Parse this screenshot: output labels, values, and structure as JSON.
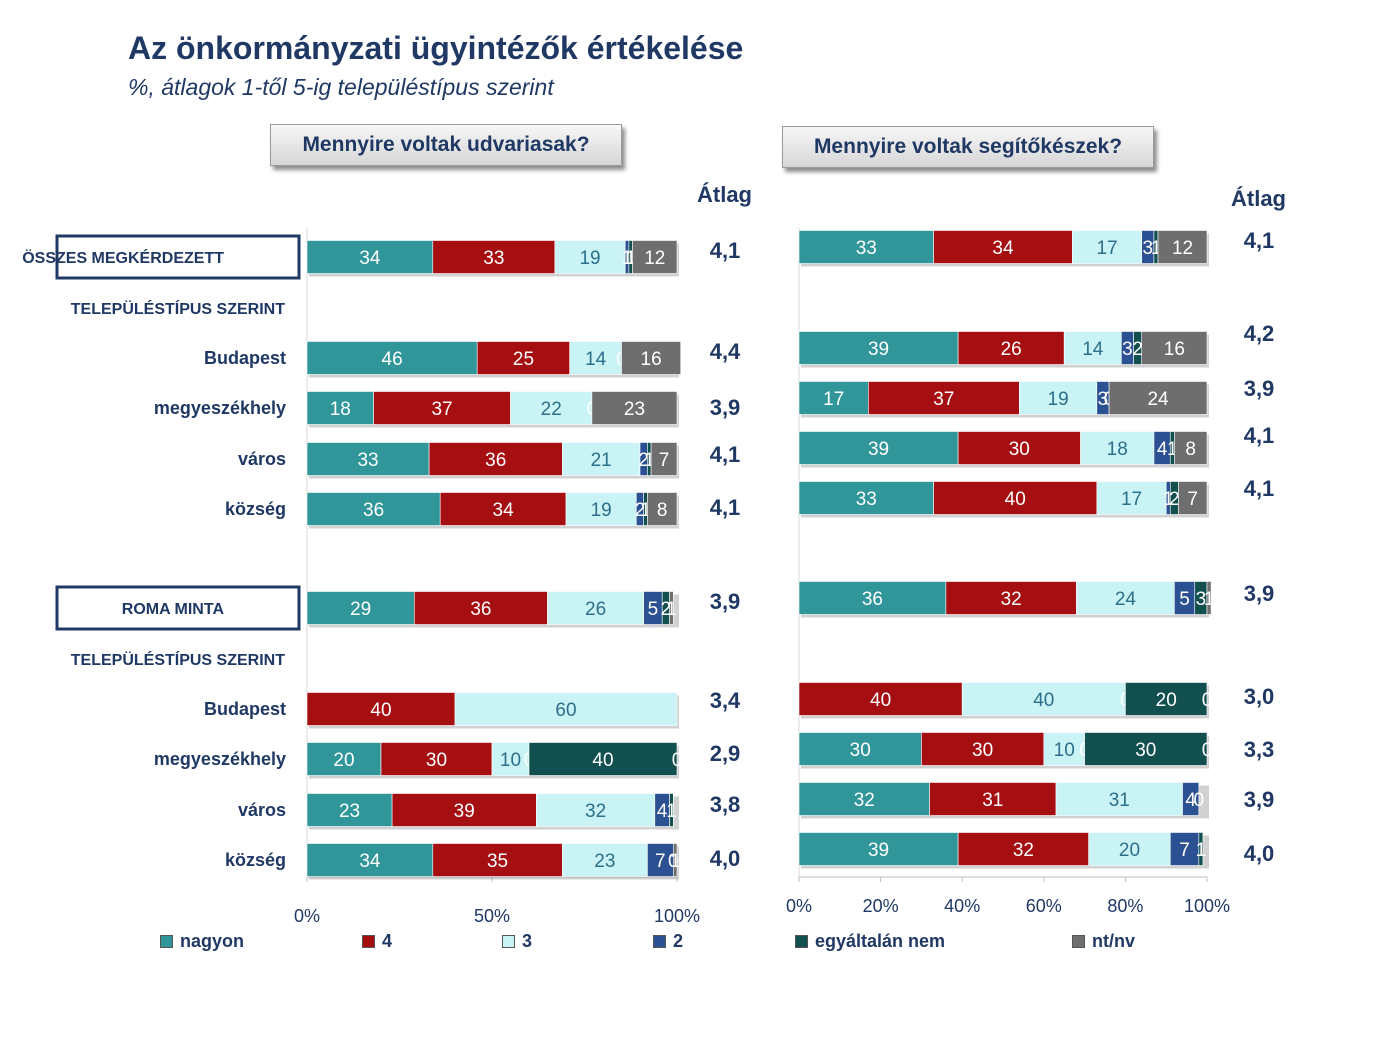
{
  "title": "Az önkormányzati ügyintézők értékelése",
  "subtitle": "%, átlagok 1-től 5-ig településtípus szerint",
  "chart_data": {
    "type": "bar",
    "orientation": "horizontal",
    "stacked": "percent",
    "series_names": [
      "nagyon",
      "4",
      "3",
      "2",
      "egyáltalán nem",
      "nt/nv"
    ],
    "colors": [
      "#31969a",
      "#a50f12",
      "#c9f3f5",
      "#2c5192",
      "#124f4f",
      "#6e6e6e"
    ],
    "mean_header": "Átlag",
    "row_labels": [
      {
        "text": "ÖSSZES MEGKÉRDEZETT",
        "boxed": true
      },
      {
        "text": "TELEPÜLÉSTÍPUS SZERINT",
        "boxed": false,
        "header": true
      },
      {
        "text": "Budapest",
        "boxed": false
      },
      {
        "text": "megyeszékhely",
        "boxed": false
      },
      {
        "text": "város",
        "boxed": false
      },
      {
        "text": "község",
        "boxed": false
      },
      {
        "text": "ROMA MINTA",
        "boxed": true
      },
      {
        "text": "TELEPÜLÉSTÍPUS SZERINT",
        "boxed": false,
        "header": true
      },
      {
        "text": "Budapest",
        "boxed": false
      },
      {
        "text": "megyeszékhely",
        "boxed": false
      },
      {
        "text": "város",
        "boxed": false
      },
      {
        "text": "község",
        "boxed": false
      }
    ],
    "panels": [
      {
        "question": "Mennyire voltak udvariasak?",
        "x_ticks": [
          "0%",
          "50%",
          "100%"
        ],
        "xlim": [
          0,
          100
        ],
        "rows": [
          {
            "values": [
              34,
              33,
              19,
              1,
              1,
              12
            ],
            "labels": [
              "34",
              "33",
              "19",
              "1",
              "1",
              "12"
            ],
            "mean": "4,1"
          },
          {
            "values": [
              46,
              25,
              14,
              0,
              0,
              16
            ],
            "labels": [
              "46",
              "25",
              "14",
              "0",
              "",
              "16"
            ],
            "mean": "4,4"
          },
          {
            "values": [
              18,
              37,
              22,
              0,
              0,
              23
            ],
            "labels": [
              "18",
              "37",
              "22",
              "0",
              "",
              "23"
            ],
            "mean": "3,9"
          },
          {
            "values": [
              33,
              36,
              21,
              2,
              1,
              7
            ],
            "labels": [
              "33",
              "36",
              "21",
              "2",
              "1",
              "7"
            ],
            "mean": "4,1"
          },
          {
            "values": [
              36,
              34,
              19,
              2,
              1,
              8
            ],
            "labels": [
              "36",
              "34",
              "19",
              "2",
              "1",
              "8"
            ],
            "mean": "4,1"
          },
          {
            "values": [
              29,
              36,
              26,
              5,
              2,
              1
            ],
            "labels": [
              "29",
              "36",
              "26",
              "5",
              "2",
              "1"
            ],
            "mean": "3,9"
          },
          {
            "values": [
              0,
              40,
              60,
              0,
              0,
              0
            ],
            "labels": [
              "0",
              "40",
              "60",
              "",
              "",
              ""
            ],
            "mean": "3,4"
          },
          {
            "values": [
              20,
              30,
              10,
              0,
              40,
              0
            ],
            "labels": [
              "20",
              "30",
              "10",
              "0",
              "40",
              "0"
            ],
            "mean": "2,9"
          },
          {
            "values": [
              23,
              39,
              32,
              4,
              1,
              0
            ],
            "labels": [
              "23",
              "39",
              "32",
              "4",
              "1",
              ""
            ],
            "mean": "3,8"
          },
          {
            "values": [
              34,
              35,
              23,
              7,
              0,
              1
            ],
            "labels": [
              "34",
              "35",
              "23",
              "7",
              "0",
              "1"
            ],
            "mean": "4,0"
          }
        ]
      },
      {
        "question": "Mennyire voltak segítőkészek?",
        "x_ticks": [
          "0%",
          "20%",
          "40%",
          "60%",
          "80%",
          "100%"
        ],
        "xlim": [
          0,
          100
        ],
        "rows": [
          {
            "values": [
              33,
              34,
              17,
              3,
              1,
              12
            ],
            "labels": [
              "33",
              "34",
              "17",
              "3",
              "1",
              "12"
            ],
            "mean": "4,1"
          },
          {
            "values": [
              39,
              26,
              14,
              3,
              2,
              16
            ],
            "labels": [
              "39",
              "26",
              "14",
              "3",
              "2",
              "16"
            ],
            "mean": "4,2"
          },
          {
            "values": [
              17,
              37,
              19,
              3,
              0,
              24
            ],
            "labels": [
              "17",
              "37",
              "19",
              "3",
              "0",
              "24"
            ],
            "mean": "3,9"
          },
          {
            "values": [
              39,
              30,
              18,
              4,
              1,
              8
            ],
            "labels": [
              "39",
              "30",
              "18",
              "4",
              "1",
              "8"
            ],
            "mean": "4,1"
          },
          {
            "values": [
              33,
              40,
              17,
              1,
              2,
              7
            ],
            "labels": [
              "33",
              "40",
              "17",
              "1",
              "2",
              "7"
            ],
            "mean": "4,1"
          },
          {
            "values": [
              36,
              32,
              24,
              5,
              3,
              1
            ],
            "labels": [
              "36",
              "32",
              "24",
              "5",
              "3",
              "1"
            ],
            "mean": "3,9"
          },
          {
            "values": [
              0,
              40,
              40,
              0,
              20,
              0
            ],
            "labels": [
              "0",
              "40",
              "40",
              "0",
              "20",
              "0"
            ],
            "mean": "3,0"
          },
          {
            "values": [
              30,
              30,
              10,
              0,
              30,
              0
            ],
            "labels": [
              "30",
              "30",
              "10",
              "0",
              "30",
              "0"
            ],
            "mean": "3,3"
          },
          {
            "values": [
              32,
              31,
              31,
              4,
              0,
              0
            ],
            "labels": [
              "32",
              "31",
              "31",
              "4",
              "0",
              ""
            ],
            "mean": "3,9"
          },
          {
            "values": [
              39,
              32,
              20,
              7,
              1,
              0
            ],
            "labels": [
              "39",
              "32",
              "20",
              "7",
              "1",
              ""
            ],
            "mean": "4,0"
          }
        ]
      }
    ]
  }
}
